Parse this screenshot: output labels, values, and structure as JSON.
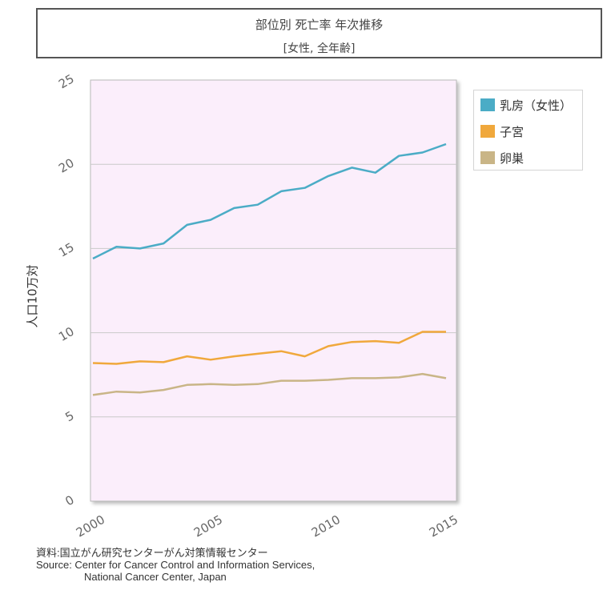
{
  "header": {
    "title": "部位別 死亡率 年次推移",
    "subtitle": "[女性, 全年齢]"
  },
  "chart_data": {
    "type": "line",
    "ylabel": "人口10万対",
    "xlabel": "",
    "xlim": [
      2000,
      2015
    ],
    "ylim": [
      0,
      25
    ],
    "yticks": [
      0,
      5,
      10,
      15,
      20,
      25
    ],
    "xticks": [
      2000,
      2005,
      2010,
      2015
    ],
    "grid": true,
    "plot_background": "#fbeefb",
    "legend_position": "right",
    "x": [
      2000,
      2001,
      2002,
      2003,
      2004,
      2005,
      2006,
      2007,
      2008,
      2009,
      2010,
      2011,
      2012,
      2013,
      2014,
      2015
    ],
    "series": [
      {
        "name": "乳房（女性）",
        "color": "#4bacc6",
        "values": [
          14.4,
          15.1,
          15.0,
          15.3,
          16.4,
          16.7,
          17.4,
          17.6,
          18.4,
          18.6,
          19.3,
          19.8,
          19.5,
          20.5,
          20.7,
          21.2
        ]
      },
      {
        "name": "子宮",
        "color": "#f0a83c",
        "values": [
          8.2,
          8.15,
          8.3,
          8.25,
          8.6,
          8.4,
          8.6,
          8.75,
          8.9,
          8.6,
          9.2,
          9.45,
          9.5,
          9.4,
          10.05,
          10.05
        ]
      },
      {
        "name": "卵巣",
        "color": "#c9b587",
        "values": [
          6.3,
          6.5,
          6.45,
          6.6,
          6.9,
          6.95,
          6.9,
          6.95,
          7.15,
          7.15,
          7.2,
          7.3,
          7.3,
          7.35,
          7.55,
          7.3
        ]
      }
    ]
  },
  "footer": {
    "line1": "資料:国立がん研究センターがん対策情報センター",
    "line2": "Source: Center for Cancer Control and Information Services,",
    "line3": "National Cancer Center, Japan"
  }
}
